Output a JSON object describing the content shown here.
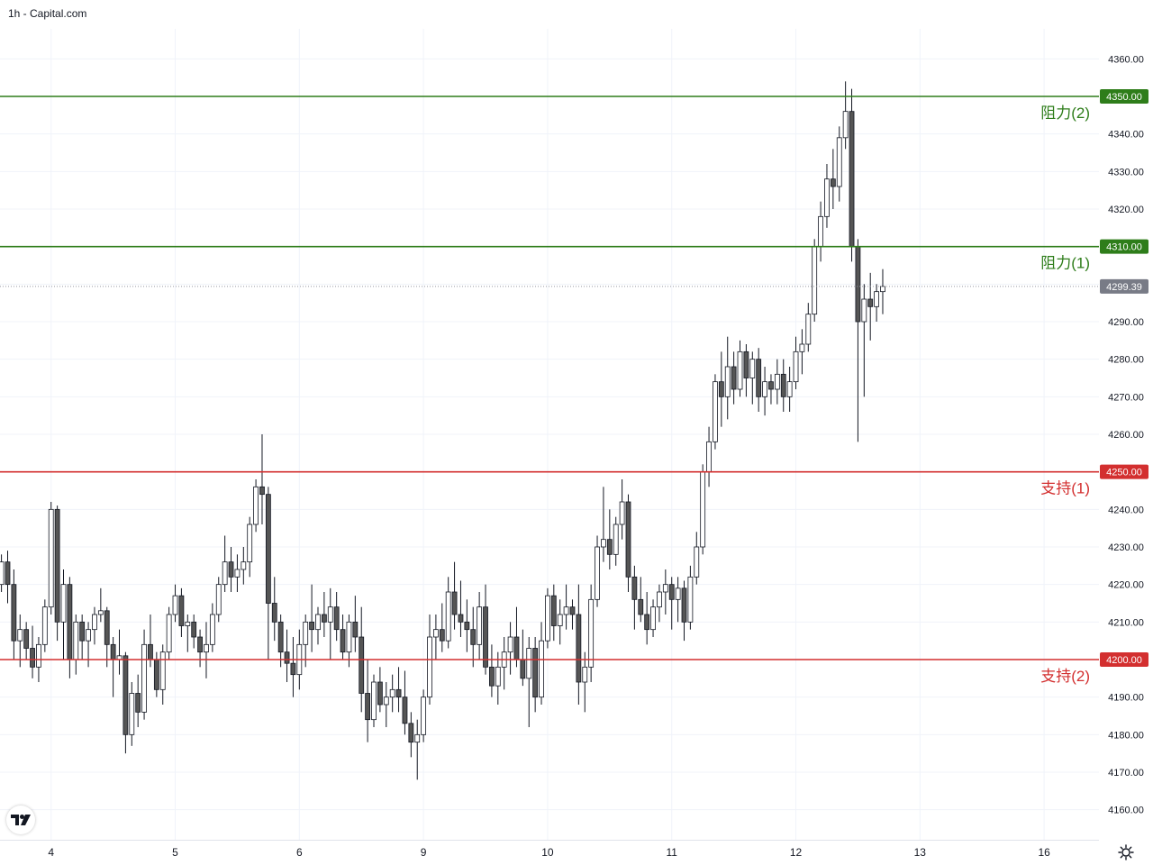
{
  "header": {
    "title": "1h - Capital.com"
  },
  "chart_data": {
    "type": "candlestick",
    "timeframe": "1h",
    "ylim": [
      4152,
      4368
    ],
    "y_ticks": [
      4160,
      4170,
      4180,
      4190,
      4200,
      4210,
      4220,
      4230,
      4240,
      4250,
      4260,
      4270,
      4280,
      4290,
      4300,
      4310,
      4320,
      4330,
      4340,
      4350,
      4360
    ],
    "x_ticks": [
      {
        "label": "4",
        "idx": 8
      },
      {
        "label": "5",
        "idx": 28
      },
      {
        "label": "6",
        "idx": 48
      },
      {
        "label": "9",
        "idx": 68
      },
      {
        "label": "10",
        "idx": 88
      },
      {
        "label": "11",
        "idx": 108
      },
      {
        "label": "12",
        "idx": 128
      },
      {
        "label": "13",
        "idx": 148
      },
      {
        "label": "16",
        "idx": 168
      }
    ],
    "last_price": 4299.39,
    "last_price_label": "4299.39",
    "levels": [
      {
        "name": "阻力(2)",
        "value": 4350,
        "value_label": "4350.00",
        "color": "#2e7d1a"
      },
      {
        "name": "阻力(1)",
        "value": 4310,
        "value_label": "4310.00",
        "color": "#2e7d1a"
      },
      {
        "name": "支持(1)",
        "value": 4250,
        "value_label": "4250.00",
        "color": "#d32f2f"
      },
      {
        "name": "支持(2)",
        "value": 4200,
        "value_label": "4200.00",
        "color": "#d32f2f"
      }
    ],
    "candles": [
      [
        4220,
        4228,
        4218,
        4226
      ],
      [
        4226,
        4229,
        4215,
        4220
      ],
      [
        4220,
        4224,
        4200,
        4205
      ],
      [
        4205,
        4212,
        4198,
        4208
      ],
      [
        4208,
        4210,
        4200,
        4203
      ],
      [
        4203,
        4209,
        4195,
        4198
      ],
      [
        4198,
        4206,
        4194,
        4204
      ],
      [
        4204,
        4216,
        4202,
        4214
      ],
      [
        4214,
        4242,
        4212,
        4240
      ],
      [
        4240,
        4241,
        4205,
        4210
      ],
      [
        4210,
        4224,
        4200,
        4220
      ],
      [
        4220,
        4222,
        4195,
        4200
      ],
      [
        4200,
        4212,
        4196,
        4210
      ],
      [
        4210,
        4212,
        4200,
        4205
      ],
      [
        4205,
        4210,
        4198,
        4208
      ],
      [
        4208,
        4214,
        4204,
        4212
      ],
      [
        4212,
        4219,
        4210,
        4213
      ],
      [
        4213,
        4214,
        4198,
        4204
      ],
      [
        4204,
        4206,
        4190,
        4200
      ],
      [
        4200,
        4208,
        4196,
        4201
      ],
      [
        4201,
        4202,
        4175,
        4180
      ],
      [
        4180,
        4194,
        4177,
        4191
      ],
      [
        4191,
        4196,
        4182,
        4186
      ],
      [
        4186,
        4208,
        4184,
        4204
      ],
      [
        4204,
        4212,
        4198,
        4200
      ],
      [
        4200,
        4202,
        4190,
        4192
      ],
      [
        4192,
        4204,
        4188,
        4202
      ],
      [
        4202,
        4214,
        4200,
        4212
      ],
      [
        4212,
        4220,
        4210,
        4217
      ],
      [
        4217,
        4219,
        4206,
        4209
      ],
      [
        4209,
        4212,
        4202,
        4210
      ],
      [
        4210,
        4212,
        4203,
        4206
      ],
      [
        4206,
        4208,
        4198,
        4202
      ],
      [
        4202,
        4210,
        4195,
        4204
      ],
      [
        4204,
        4215,
        4202,
        4212
      ],
      [
        4212,
        4222,
        4210,
        4220
      ],
      [
        4220,
        4233,
        4218,
        4226
      ],
      [
        4226,
        4230,
        4218,
        4222
      ],
      [
        4222,
        4228,
        4218,
        4224
      ],
      [
        4224,
        4230,
        4220,
        4226
      ],
      [
        4226,
        4238,
        4222,
        4236
      ],
      [
        4236,
        4248,
        4234,
        4246
      ],
      [
        4246,
        4260,
        4236,
        4244
      ],
      [
        4244,
        4246,
        4200,
        4215
      ],
      [
        4215,
        4222,
        4205,
        4210
      ],
      [
        4210,
        4212,
        4198,
        4202
      ],
      [
        4202,
        4208,
        4194,
        4199
      ],
      [
        4199,
        4206,
        4190,
        4196
      ],
      [
        4196,
        4208,
        4192,
        4204
      ],
      [
        4204,
        4212,
        4198,
        4210
      ],
      [
        4210,
        4220,
        4202,
        4208
      ],
      [
        4208,
        4214,
        4204,
        4212
      ],
      [
        4212,
        4218,
        4206,
        4210
      ],
      [
        4210,
        4219,
        4200,
        4214
      ],
      [
        4214,
        4218,
        4205,
        4208
      ],
      [
        4208,
        4212,
        4200,
        4202
      ],
      [
        4202,
        4212,
        4198,
        4210
      ],
      [
        4210,
        4217,
        4202,
        4206
      ],
      [
        4206,
        4214,
        4186,
        4191
      ],
      [
        4191,
        4200,
        4178,
        4184
      ],
      [
        4184,
        4196,
        4182,
        4194
      ],
      [
        4194,
        4198,
        4186,
        4188
      ],
      [
        4188,
        4194,
        4182,
        4190
      ],
      [
        4190,
        4196,
        4186,
        4192
      ],
      [
        4192,
        4198,
        4186,
        4190
      ],
      [
        4190,
        4197,
        4180,
        4183
      ],
      [
        4183,
        4186,
        4174,
        4178
      ],
      [
        4178,
        4184,
        4168,
        4180
      ],
      [
        4180,
        4192,
        4178,
        4190
      ],
      [
        4190,
        4212,
        4188,
        4206
      ],
      [
        4206,
        4212,
        4200,
        4208
      ],
      [
        4208,
        4215,
        4202,
        4205
      ],
      [
        4205,
        4222,
        4203,
        4218
      ],
      [
        4218,
        4226,
        4208,
        4212
      ],
      [
        4212,
        4221,
        4206,
        4210
      ],
      [
        4210,
        4216,
        4202,
        4208
      ],
      [
        4208,
        4214,
        4198,
        4204
      ],
      [
        4204,
        4218,
        4200,
        4214
      ],
      [
        4214,
        4220,
        4196,
        4198
      ],
      [
        4198,
        4204,
        4190,
        4193
      ],
      [
        4193,
        4202,
        4188,
        4198
      ],
      [
        4198,
        4206,
        4192,
        4202
      ],
      [
        4202,
        4210,
        4196,
        4206
      ],
      [
        4206,
        4214,
        4198,
        4200
      ],
      [
        4200,
        4208,
        4193,
        4195
      ],
      [
        4195,
        4206,
        4182,
        4203
      ],
      [
        4203,
        4206,
        4186,
        4190
      ],
      [
        4190,
        4210,
        4188,
        4205
      ],
      [
        4205,
        4219,
        4203,
        4217
      ],
      [
        4217,
        4220,
        4205,
        4209
      ],
      [
        4209,
        4216,
        4204,
        4212
      ],
      [
        4212,
        4220,
        4208,
        4214
      ],
      [
        4214,
        4216,
        4208,
        4212
      ],
      [
        4212,
        4220,
        4188,
        4194
      ],
      [
        4194,
        4202,
        4186,
        4198
      ],
      [
        4198,
        4220,
        4194,
        4216
      ],
      [
        4216,
        4233,
        4214,
        4230
      ],
      [
        4230,
        4246,
        4226,
        4232
      ],
      [
        4232,
        4240,
        4224,
        4228
      ],
      [
        4228,
        4238,
        4225,
        4236
      ],
      [
        4236,
        4248,
        4232,
        4242
      ],
      [
        4242,
        4244,
        4218,
        4222
      ],
      [
        4222,
        4225,
        4208,
        4216
      ],
      [
        4216,
        4222,
        4210,
        4212
      ],
      [
        4212,
        4218,
        4204,
        4208
      ],
      [
        4208,
        4216,
        4206,
        4214
      ],
      [
        4214,
        4220,
        4210,
        4218
      ],
      [
        4218,
        4224,
        4212,
        4220
      ],
      [
        4220,
        4222,
        4208,
        4216
      ],
      [
        4216,
        4222,
        4210,
        4219
      ],
      [
        4219,
        4221,
        4205,
        4210
      ],
      [
        4210,
        4225,
        4208,
        4222
      ],
      [
        4222,
        4234,
        4220,
        4230
      ],
      [
        4230,
        4252,
        4228,
        4250
      ],
      [
        4250,
        4262,
        4246,
        4258
      ],
      [
        4258,
        4276,
        4256,
        4274
      ],
      [
        4274,
        4282,
        4262,
        4270
      ],
      [
        4270,
        4286,
        4264,
        4278
      ],
      [
        4278,
        4282,
        4268,
        4272
      ],
      [
        4272,
        4285,
        4270,
        4282
      ],
      [
        4282,
        4284,
        4270,
        4275
      ],
      [
        4275,
        4282,
        4268,
        4280
      ],
      [
        4280,
        4283,
        4266,
        4270
      ],
      [
        4270,
        4278,
        4265,
        4274
      ],
      [
        4274,
        4276,
        4268,
        4272
      ],
      [
        4272,
        4280,
        4268,
        4276
      ],
      [
        4276,
        4280,
        4266,
        4270
      ],
      [
        4270,
        4278,
        4266,
        4274
      ],
      [
        4274,
        4286,
        4272,
        4282
      ],
      [
        4282,
        4288,
        4276,
        4284
      ],
      [
        4284,
        4295,
        4282,
        4292
      ],
      [
        4292,
        4312,
        4290,
        4310
      ],
      [
        4310,
        4322,
        4306,
        4318
      ],
      [
        4318,
        4332,
        4315,
        4328
      ],
      [
        4328,
        4336,
        4320,
        4326
      ],
      [
        4326,
        4342,
        4322,
        4339
      ],
      [
        4339,
        4354,
        4336,
        4346
      ],
      [
        4346,
        4352,
        4306,
        4310
      ],
      [
        4310,
        4312,
        4258,
        4290
      ],
      [
        4290,
        4300,
        4270,
        4296
      ],
      [
        4296,
        4303,
        4285,
        4294
      ],
      [
        4294,
        4300,
        4290,
        4298
      ],
      [
        4298,
        4304,
        4292,
        4299.39
      ]
    ]
  }
}
